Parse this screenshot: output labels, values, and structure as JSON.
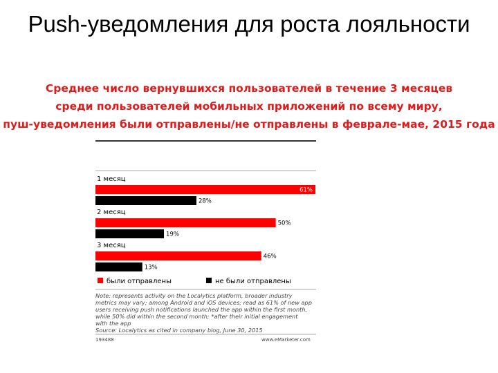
{
  "slide": {
    "title": "Push-уведомления для роста лояльности"
  },
  "chart": {
    "subtitle_lines": [
      "Среднее число вернувшихся пользователей в течение 3 месяцев",
      "среди пользователей мобильных приложений по всему миру,",
      "пуш-уведомления были отправлены/не отправлены в феврале-мае, 2015 года"
    ],
    "note_lines": [
      "Note: represents activity on the Localytics platform, broader industry",
      "metrics may vary; among Android and iOS devices; read as 61% of new app",
      "users receiving push notifications launched the app within the first month,",
      "while 50% did within the second month; *after their initial engagement",
      "with the app",
      "Source: Localytics as cited in company blog, June 30, 2015"
    ],
    "chart_id": "193488",
    "brand": "www.eMarketer.com"
  },
  "chart_data": {
    "type": "bar",
    "orientation": "horizontal",
    "categories": [
      "1 месяц",
      "2 месяц",
      "3 месяц"
    ],
    "series": [
      {
        "name": "были отправлены",
        "values": [
          61,
          50,
          46
        ],
        "labels": [
          "61%",
          "50%",
          "46%"
        ],
        "color": "#ff0000"
      },
      {
        "name": "не были отправлены",
        "values": [
          28,
          19,
          13
        ],
        "labels": [
          "28%",
          "19%",
          "13%"
        ],
        "color": "#000000"
      }
    ],
    "unit": "%",
    "xlim": [
      0,
      61
    ],
    "grid": false,
    "legend_position": "bottom"
  }
}
